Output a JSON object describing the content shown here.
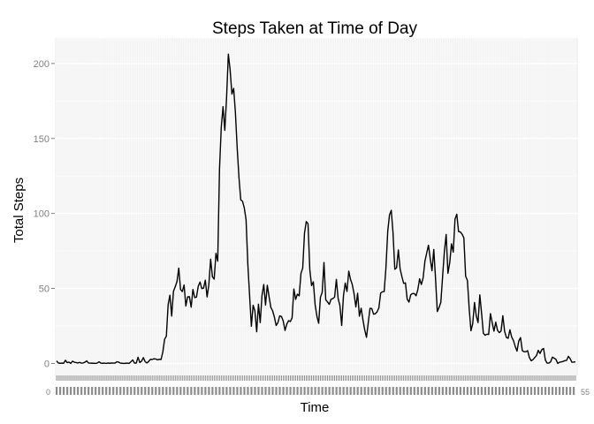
{
  "chart_data": {
    "type": "line",
    "title": "Steps Taken at Time of Day",
    "xlabel": "Time",
    "ylabel": "Total Steps",
    "ylim": [
      -8,
      217
    ],
    "y_ticks": [
      0,
      50,
      100,
      150,
      200
    ],
    "y_tick_labels": [
      "0",
      "50",
      "100",
      "150",
      "200"
    ],
    "x_tick_labels_note": "288 overlapping 5-minute interval labels, unreadable",
    "x_first_label": "0",
    "x_last_label": "55",
    "grid": true,
    "legend": "none",
    "colors": {
      "panel": "#f2f2f2",
      "grid": "#ffffff",
      "line": "#000000",
      "tick_text": "#7f7f7f"
    },
    "series": [
      {
        "values": [
          1.7,
          0.3,
          0.1,
          0.2,
          0.1,
          2.1,
          0.5,
          0.9,
          0,
          1.5,
          0.8,
          0.6,
          0.3,
          0.7,
          0.2,
          0.3,
          0.8,
          1.7,
          0.3,
          0.2,
          0.1,
          0.1,
          0,
          0.3,
          1.1,
          0.2,
          0.1,
          0.2,
          0,
          0.3,
          0.1,
          0.3,
          0.2,
          0.2,
          1.1,
          0.9,
          0.2,
          0.1,
          0,
          0.1,
          0.2,
          0,
          1.1,
          2.3,
          0.2,
          0.2,
          4.1,
          0.6,
          1.5,
          3.9,
          1.2,
          0.3,
          1.3,
          2.7,
          2.6,
          3.1,
          2.9,
          2.4,
          2.8,
          2.6,
          7.6,
          16.1,
          18.2,
          39.3,
          45.5,
          31.6,
          48,
          51.1,
          54.6,
          63.5,
          49.3,
          47.9,
          52.3,
          38.3,
          44.4,
          44.5,
          37.5,
          49.3,
          43.9,
          44.2,
          51.5,
          54.3,
          49.9,
          50.2,
          55.5,
          44.3,
          52.6,
          69.5,
          57.8,
          56.2,
          73.4,
          68.2,
          129.4,
          157.5,
          171.2,
          155.4,
          177.3,
          206.2,
          195.9,
          179.6,
          183.4,
          167,
          143.5,
          124,
          109.1,
          108.1,
          103.7,
          95.9,
          66.2,
          45.2,
          24.8,
          38.8,
          35,
          21.1,
          39.5,
          27.2,
          45.3,
          52.6,
          38.9,
          52.1,
          44.5,
          37.4,
          35,
          30.9,
          25.3,
          27.2,
          31.7,
          31.3,
          28.2,
          22,
          26.2,
          28.5,
          27.9,
          30.4,
          49.6,
          42.7,
          46.2,
          45.1,
          60,
          63.6,
          86.8,
          94.6,
          93.1,
          62.4,
          51.9,
          54.4,
          39.2,
          31.5,
          26.8,
          44.1,
          47.4,
          67.3,
          42.4,
          41,
          39.4,
          42.8,
          43.2,
          44.2,
          56,
          43.3,
          38.5,
          25.3,
          44.9,
          53.6,
          48,
          61.5,
          56,
          52.5,
          46.4,
          37.6,
          46.8,
          31.5,
          36.8,
          29.1,
          22.4,
          17.4,
          27.1,
          36.7,
          36.6,
          32.8,
          33.1,
          34.4,
          37,
          46.8,
          47.8,
          47.9,
          63.9,
          88,
          99,
          102.1,
          86.9,
          62.8,
          63.8,
          75.7,
          63,
          57.9,
          53.4,
          53.7,
          42.8,
          40.9,
          45.8,
          46.6,
          46.6,
          45.1,
          49.2,
          56.4,
          52.6,
          57.1,
          68.1,
          73.5,
          78.8,
          69.9,
          61.8,
          76,
          56.7,
          34.6,
          37.3,
          40.8,
          58,
          74.7,
          86,
          60.1,
          67,
          79.7,
          74.2,
          96.2,
          99.5,
          87.9,
          87.7,
          86.2,
          83.7,
          58.1,
          55.3,
          36.6,
          21.8,
          26.5,
          40.6,
          31.7,
          27.2,
          45.7,
          33.5,
          20.1,
          18.8,
          19.5,
          19.3,
          33.2,
          27.1,
          21.5,
          27.5,
          22.1,
          20.5,
          21.6,
          31.8,
          21.5,
          17.3,
          16.7,
          22.4,
          17.6,
          15.2,
          11.3,
          8.2,
          15,
          17.2,
          8.5,
          7.8,
          7.8,
          8.5,
          3.9,
          1.8,
          2.5,
          3.9,
          5.2,
          8.7,
          6.6,
          9.2,
          10,
          2.3,
          0.2,
          0.2,
          1.1,
          4.2,
          3.5,
          2.7,
          0,
          0.8,
          1,
          1.3,
          1.9,
          2,
          4.7,
          3.2,
          0.8,
          0.9,
          1.1
        ]
      }
    ]
  }
}
